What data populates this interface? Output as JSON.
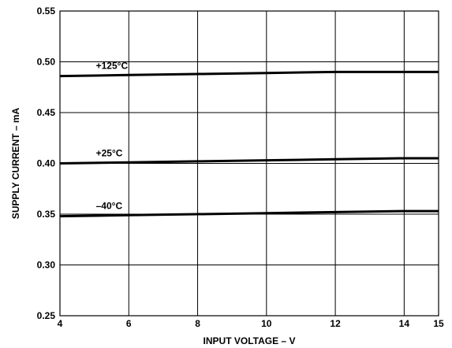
{
  "chart_data": {
    "type": "line",
    "title": "",
    "xlabel": "INPUT VOLTAGE – V",
    "ylabel": "SUPPLY CURRENT – mA",
    "xlim": [
      4,
      15
    ],
    "ylim": [
      0.25,
      0.55
    ],
    "x_ticks": [
      4,
      6,
      8,
      10,
      12,
      14,
      15
    ],
    "x_tick_labels": [
      "4",
      "6",
      "8",
      "10",
      "12",
      "14",
      "15"
    ],
    "y_ticks": [
      0.25,
      0.3,
      0.35,
      0.4,
      0.45,
      0.5,
      0.55
    ],
    "y_tick_labels": [
      "0.25",
      "0.30",
      "0.35",
      "0.40",
      "0.45",
      "0.50",
      "0.55"
    ],
    "grid": true,
    "legend": "none",
    "series": [
      {
        "name": "+125°C",
        "x": [
          4,
          6,
          8,
          10,
          12,
          13,
          14,
          15
        ],
        "y": [
          0.486,
          0.487,
          0.488,
          0.489,
          0.49,
          0.49,
          0.49,
          0.49
        ]
      },
      {
        "name": "+25°C",
        "x": [
          4,
          6,
          8,
          10,
          12,
          14,
          15
        ],
        "y": [
          0.4,
          0.401,
          0.402,
          0.403,
          0.404,
          0.405,
          0.405
        ]
      },
      {
        "name": "–40°C",
        "x": [
          4,
          6,
          8,
          10,
          12,
          14,
          15
        ],
        "y": [
          0.348,
          0.349,
          0.35,
          0.351,
          0.352,
          0.353,
          0.353
        ]
      }
    ]
  }
}
